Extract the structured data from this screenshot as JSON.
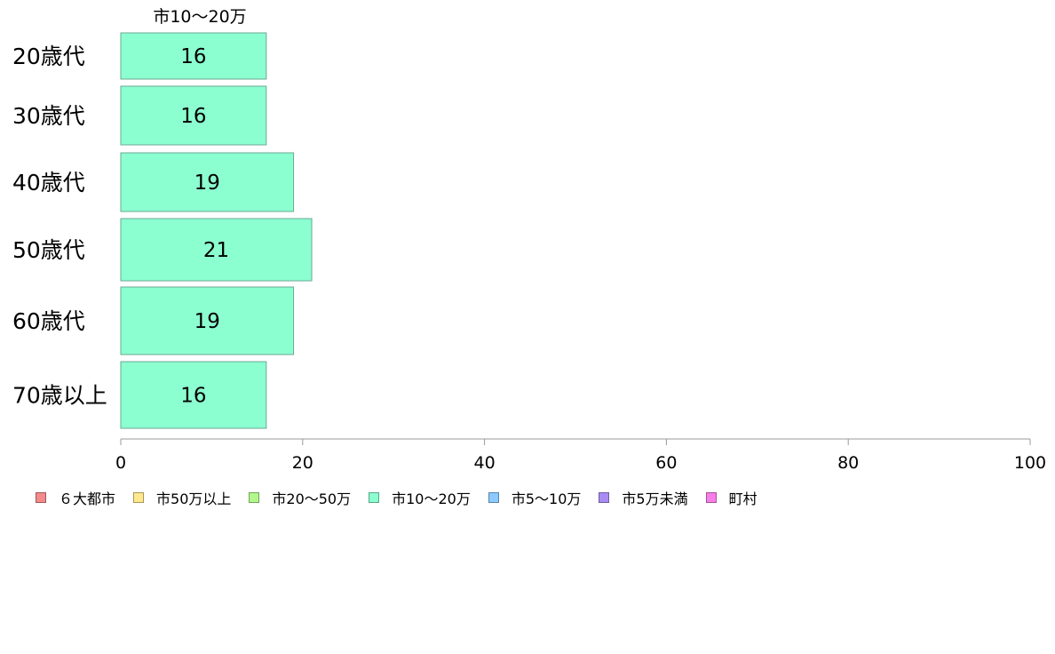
{
  "chart_data": {
    "type": "bar",
    "orientation": "horizontal",
    "title": "市10～20万",
    "categories": [
      "20歳代",
      "30歳代",
      "40歳代",
      "50歳代",
      "60歳代",
      "70歳以上"
    ],
    "series": [
      {
        "name": "市10～20万",
        "color": "#8cffd0",
        "values": [
          16,
          16,
          19,
          21,
          19,
          16
        ]
      }
    ],
    "data_labels": [
      "16",
      "16",
      "19",
      "21",
      "19",
      "16"
    ],
    "xlim": [
      0,
      100
    ],
    "x_ticks": [
      0,
      20,
      40,
      60,
      80,
      100
    ],
    "grid": false,
    "legend_position": "bottom"
  },
  "legend": {
    "items": [
      {
        "label": "６大都市",
        "color": "#f38b8b"
      },
      {
        "label": "市50万以上",
        "color": "#ffe98c"
      },
      {
        "label": "市20～50万",
        "color": "#b2f78a"
      },
      {
        "label": "市10～20万",
        "color": "#8cffd0"
      },
      {
        "label": "市5～10万",
        "color": "#8ccaff"
      },
      {
        "label": "市5万未満",
        "color": "#a98cf3"
      },
      {
        "label": "町村",
        "color": "#f77ee8"
      }
    ]
  }
}
